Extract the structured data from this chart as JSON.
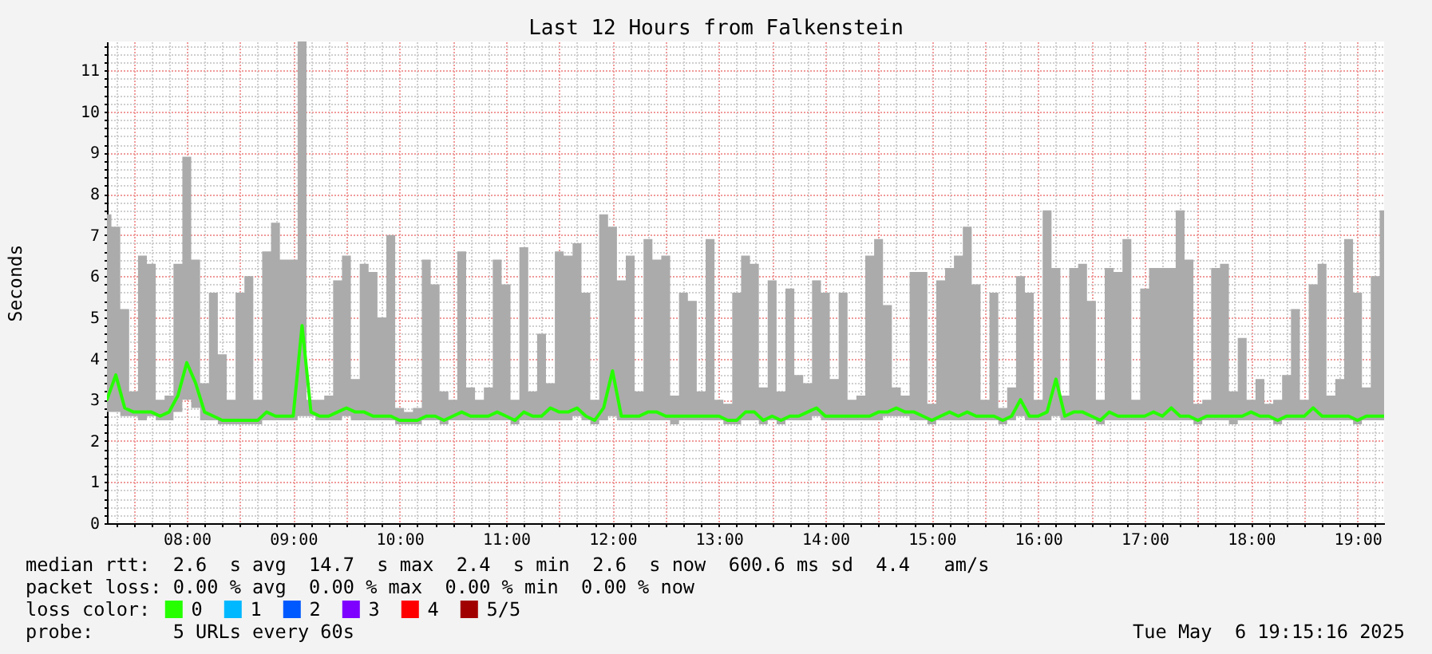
{
  "chart_data": {
    "type": "line",
    "title": "Last 12 Hours from Falkenstein",
    "ylabel": "Seconds",
    "legend_title": "loss color:",
    "legend": "bottom left",
    "grid": true,
    "xlim": [
      7.25,
      19.25
    ],
    "ylim": [
      0,
      11.7
    ],
    "xticks": [
      {
        "value": 7.3333,
        "label": null
      },
      {
        "value": 7.5,
        "label": null
      },
      {
        "value": 7.6667,
        "label": null
      },
      {
        "value": 7.8333,
        "label": null
      },
      {
        "value": 8,
        "label": "08:00"
      },
      {
        "value": 8.1667,
        "label": null
      },
      {
        "value": 8.3333,
        "label": null
      },
      {
        "value": 8.5,
        "label": null
      },
      {
        "value": 8.6667,
        "label": null
      },
      {
        "value": 8.8333,
        "label": null
      },
      {
        "value": 9,
        "label": "09:00"
      },
      {
        "value": 9.1667,
        "label": null
      },
      {
        "value": 9.3333,
        "label": null
      },
      {
        "value": 9.5,
        "label": null
      },
      {
        "value": 9.6667,
        "label": null
      },
      {
        "value": 9.8333,
        "label": null
      },
      {
        "value": 10,
        "label": "10:00"
      },
      {
        "value": 10.1667,
        "label": null
      },
      {
        "value": 10.3333,
        "label": null
      },
      {
        "value": 10.5,
        "label": null
      },
      {
        "value": 10.6667,
        "label": null
      },
      {
        "value": 10.8333,
        "label": null
      },
      {
        "value": 11,
        "label": "11:00"
      },
      {
        "value": 11.1667,
        "label": null
      },
      {
        "value": 11.3333,
        "label": null
      },
      {
        "value": 11.5,
        "label": null
      },
      {
        "value": 11.6667,
        "label": null
      },
      {
        "value": 11.8333,
        "label": null
      },
      {
        "value": 12,
        "label": "12:00"
      },
      {
        "value": 12.1667,
        "label": null
      },
      {
        "value": 12.3333,
        "label": null
      },
      {
        "value": 12.5,
        "label": null
      },
      {
        "value": 12.6667,
        "label": null
      },
      {
        "value": 12.8333,
        "label": null
      },
      {
        "value": 13,
        "label": "13:00"
      },
      {
        "value": 13.1667,
        "label": null
      },
      {
        "value": 13.3333,
        "label": null
      },
      {
        "value": 13.5,
        "label": null
      },
      {
        "value": 13.6667,
        "label": null
      },
      {
        "value": 13.8333,
        "label": null
      },
      {
        "value": 14,
        "label": "14:00"
      },
      {
        "value": 14.1667,
        "label": null
      },
      {
        "value": 14.3333,
        "label": null
      },
      {
        "value": 14.5,
        "label": null
      },
      {
        "value": 14.6667,
        "label": null
      },
      {
        "value": 14.8333,
        "label": null
      },
      {
        "value": 15,
        "label": "15:00"
      },
      {
        "value": 15.1667,
        "label": null
      },
      {
        "value": 15.3333,
        "label": null
      },
      {
        "value": 15.5,
        "label": null
      },
      {
        "value": 15.6667,
        "label": null
      },
      {
        "value": 15.8333,
        "label": null
      },
      {
        "value": 16,
        "label": "16:00"
      },
      {
        "value": 16.1667,
        "label": null
      },
      {
        "value": 16.3333,
        "label": null
      },
      {
        "value": 16.5,
        "label": null
      },
      {
        "value": 16.6667,
        "label": null
      },
      {
        "value": 16.8333,
        "label": null
      },
      {
        "value": 17,
        "label": "17:00"
      },
      {
        "value": 17.1667,
        "label": null
      },
      {
        "value": 17.3333,
        "label": null
      },
      {
        "value": 17.5,
        "label": null
      },
      {
        "value": 17.6667,
        "label": null
      },
      {
        "value": 17.8333,
        "label": null
      },
      {
        "value": 18,
        "label": "18:00"
      },
      {
        "value": 18.1667,
        "label": null
      },
      {
        "value": 18.3333,
        "label": null
      },
      {
        "value": 18.5,
        "label": null
      },
      {
        "value": 18.6667,
        "label": null
      },
      {
        "value": 18.8333,
        "label": null
      },
      {
        "value": 19,
        "label": "19:00"
      },
      {
        "value": 19.1667,
        "label": null
      }
    ],
    "yticks": [
      0,
      {
        "value": 0.2,
        "label": null
      },
      {
        "value": 0.4,
        "label": null
      },
      {
        "value": 0.6,
        "label": null
      },
      {
        "value": 0.8,
        "label": null
      },
      1,
      {
        "value": 1.2,
        "label": null
      },
      {
        "value": 1.4,
        "label": null
      },
      {
        "value": 1.6,
        "label": null
      },
      {
        "value": 1.8,
        "label": null
      },
      2,
      {
        "value": 2.2,
        "label": null
      },
      {
        "value": 2.4,
        "label": null
      },
      {
        "value": 2.6,
        "label": null
      },
      {
        "value": 2.8,
        "label": null
      },
      3,
      {
        "value": 3.2,
        "label": null
      },
      {
        "value": 3.4,
        "label": null
      },
      {
        "value": 3.6,
        "label": null
      },
      {
        "value": 3.8,
        "label": null
      },
      4,
      {
        "value": 4.2,
        "label": null
      },
      {
        "value": 4.4,
        "label": null
      },
      {
        "value": 4.6,
        "label": null
      },
      {
        "value": 4.8,
        "label": null
      },
      5,
      {
        "value": 5.2,
        "label": null
      },
      {
        "value": 5.4,
        "label": null
      },
      {
        "value": 5.6,
        "label": null
      },
      {
        "value": 5.8,
        "label": null
      },
      6,
      {
        "value": 6.2,
        "label": null
      },
      {
        "value": 6.4,
        "label": null
      },
      {
        "value": 6.6,
        "label": null
      },
      {
        "value": 6.8,
        "label": null
      },
      7,
      {
        "value": 7.2,
        "label": null
      },
      {
        "value": 7.4,
        "label": null
      },
      {
        "value": 7.6,
        "label": null
      },
      {
        "value": 7.8,
        "label": null
      },
      8,
      {
        "value": 8.2,
        "label": null
      },
      {
        "value": 8.4,
        "label": null
      },
      {
        "value": 8.6,
        "label": null
      },
      {
        "value": 8.8,
        "label": null
      },
      9,
      {
        "value": 9.2,
        "label": null
      },
      {
        "value": 9.4,
        "label": null
      },
      {
        "value": 9.6,
        "label": null
      },
      {
        "value": 9.8,
        "label": null
      },
      10,
      {
        "value": 10.2,
        "label": null
      },
      {
        "value": 10.4,
        "label": null
      },
      {
        "value": 10.6,
        "label": null
      },
      {
        "value": 10.8,
        "label": null
      },
      11,
      {
        "value": 11.2,
        "label": null
      },
      {
        "value": 11.4,
        "label": null
      },
      {
        "value": 11.6,
        "label": null
      }
    ],
    "x": [
      7.25,
      7.3333,
      7.4167,
      7.5,
      7.5833,
      7.6667,
      7.75,
      7.8333,
      7.9167,
      8,
      8.0833,
      8.1667,
      8.25,
      8.3333,
      8.4167,
      8.5,
      8.5833,
      8.6667,
      8.75,
      8.8333,
      8.9167,
      9,
      9.0833,
      9.1667,
      9.25,
      9.3333,
      9.4167,
      9.5,
      9.5833,
      9.6667,
      9.75,
      9.8333,
      9.9167,
      10,
      10.0833,
      10.1667,
      10.25,
      10.3333,
      10.4167,
      10.5,
      10.5833,
      10.6667,
      10.75,
      10.8333,
      10.9167,
      11,
      11.0833,
      11.1667,
      11.25,
      11.3333,
      11.4167,
      11.5,
      11.5833,
      11.6667,
      11.75,
      11.8333,
      11.9167,
      12,
      12.0833,
      12.1667,
      12.25,
      12.3333,
      12.4167,
      12.5,
      12.5833,
      12.6667,
      12.75,
      12.8333,
      12.9167,
      13,
      13.0833,
      13.1667,
      13.25,
      13.3333,
      13.4167,
      13.5,
      13.5833,
      13.6667,
      13.75,
      13.8333,
      13.9167,
      14,
      14.0833,
      14.1667,
      14.25,
      14.3333,
      14.4167,
      14.5,
      14.5833,
      14.6667,
      14.75,
      14.8333,
      14.9167,
      15,
      15.0833,
      15.1667,
      15.25,
      15.3333,
      15.4167,
      15.5,
      15.5833,
      15.6667,
      15.75,
      15.8333,
      15.9167,
      16,
      16.0833,
      16.1667,
      16.25,
      16.3333,
      16.4167,
      16.5,
      16.5833,
      16.6667,
      16.75,
      16.8333,
      16.9167,
      17,
      17.0833,
      17.1667,
      17.25,
      17.3333,
      17.4167,
      17.5,
      17.5833,
      17.6667,
      17.75,
      17.8333,
      17.9167,
      18,
      18.0833,
      18.1667,
      18.25,
      18.3333,
      18.4167,
      18.5,
      18.5833,
      18.6667,
      18.75,
      18.8333,
      18.9167,
      19,
      19.0833,
      19.1667,
      19.25
    ],
    "series": [
      {
        "name": "0",
        "color": "#26ff00",
        "values": [
          3.0,
          3.6,
          2.8,
          2.7,
          2.7,
          2.7,
          2.6,
          2.7,
          3.1,
          3.9,
          3.4,
          2.7,
          2.6,
          2.5,
          2.5,
          2.5,
          2.5,
          2.5,
          2.7,
          2.6,
          2.6,
          2.6,
          4.8,
          2.7,
          2.6,
          2.6,
          2.7,
          2.8,
          2.7,
          2.7,
          2.6,
          2.6,
          2.6,
          2.5,
          2.5,
          2.5,
          2.6,
          2.6,
          2.5,
          2.6,
          2.7,
          2.6,
          2.6,
          2.6,
          2.7,
          2.6,
          2.5,
          2.7,
          2.6,
          2.6,
          2.8,
          2.7,
          2.7,
          2.8,
          2.6,
          2.5,
          2.8,
          3.7,
          2.6,
          2.6,
          2.6,
          2.7,
          2.7,
          2.6,
          2.6,
          2.6,
          2.6,
          2.6,
          2.6,
          2.6,
          2.5,
          2.5,
          2.7,
          2.7,
          2.5,
          2.6,
          2.5,
          2.6,
          2.6,
          2.7,
          2.8,
          2.6,
          2.6,
          2.6,
          2.6,
          2.6,
          2.6,
          2.7,
          2.7,
          2.8,
          2.7,
          2.7,
          2.6,
          2.5,
          2.6,
          2.7,
          2.6,
          2.7,
          2.6,
          2.6,
          2.6,
          2.5,
          2.6,
          3.0,
          2.6,
          2.6,
          2.7,
          3.5,
          2.6,
          2.7,
          2.7,
          2.6,
          2.5,
          2.7,
          2.6,
          2.6,
          2.6,
          2.6,
          2.7,
          2.6,
          2.8,
          2.6,
          2.6,
          2.5,
          2.6,
          2.6,
          2.6,
          2.6,
          2.6,
          2.7,
          2.6,
          2.6,
          2.5,
          2.6,
          2.6,
          2.6,
          2.8,
          2.6,
          2.6,
          2.6,
          2.6,
          2.5,
          2.6,
          2.6,
          2.6
        ],
        "lower": [
          2.7,
          2.7,
          2.6,
          2.6,
          2.5,
          2.6,
          2.5,
          2.5,
          2.7,
          3.0,
          2.8,
          2.5,
          2.5,
          2.4,
          2.4,
          2.4,
          2.4,
          2.4,
          2.5,
          2.5,
          2.5,
          2.5,
          2.6,
          2.6,
          2.5,
          2.5,
          2.5,
          2.6,
          2.5,
          2.5,
          2.5,
          2.5,
          2.5,
          2.4,
          2.4,
          2.4,
          2.5,
          2.5,
          2.4,
          2.5,
          2.5,
          2.5,
          2.5,
          2.5,
          2.5,
          2.5,
          2.4,
          2.5,
          2.5,
          2.5,
          2.5,
          2.5,
          2.5,
          2.6,
          2.5,
          2.4,
          2.5,
          2.6,
          2.5,
          2.5,
          2.5,
          2.5,
          2.5,
          2.5,
          2.4,
          2.5,
          2.5,
          2.5,
          2.5,
          2.5,
          2.4,
          2.4,
          2.5,
          2.5,
          2.4,
          2.5,
          2.4,
          2.5,
          2.5,
          2.5,
          2.6,
          2.5,
          2.5,
          2.5,
          2.5,
          2.5,
          2.5,
          2.5,
          2.6,
          2.6,
          2.6,
          2.5,
          2.5,
          2.4,
          2.5,
          2.5,
          2.5,
          2.5,
          2.5,
          2.5,
          2.5,
          2.4,
          2.5,
          2.6,
          2.5,
          2.5,
          2.5,
          2.6,
          2.5,
          2.5,
          2.5,
          2.5,
          2.4,
          2.5,
          2.5,
          2.5,
          2.5,
          2.5,
          2.5,
          2.5,
          2.5,
          2.5,
          2.5,
          2.4,
          2.5,
          2.5,
          2.5,
          2.4,
          2.5,
          2.5,
          2.5,
          2.5,
          2.4,
          2.5,
          2.5,
          2.5,
          2.5,
          2.5,
          2.5,
          2.5,
          2.5,
          2.4,
          2.5,
          2.5,
          2.5
        ],
        "upper": [
          7.5,
          7.2,
          5.2,
          3.2,
          6.5,
          6.3,
          3.0,
          3.1,
          6.3,
          8.9,
          6.4,
          3.4,
          5.6,
          4.1,
          3.0,
          5.6,
          6.0,
          3.0,
          6.6,
          7.3,
          6.4,
          6.4,
          11.7,
          3.0,
          3.0,
          3.1,
          5.9,
          6.5,
          3.5,
          6.3,
          6.1,
          5.0,
          7.0,
          2.8,
          2.7,
          2.8,
          6.4,
          5.8,
          3.2,
          3.0,
          6.6,
          3.3,
          3.0,
          3.3,
          6.4,
          5.8,
          3.0,
          6.7,
          3.2,
          4.6,
          3.4,
          6.6,
          6.5,
          6.8,
          5.6,
          3.0,
          7.5,
          7.2,
          5.9,
          6.5,
          3.2,
          6.9,
          6.4,
          6.5,
          3.1,
          5.6,
          5.4,
          3.2,
          6.9,
          3.0,
          2.9,
          5.6,
          6.5,
          6.3,
          3.3,
          5.9,
          3.2,
          5.7,
          3.6,
          3.4,
          5.9,
          5.6,
          3.5,
          5.6,
          3.0,
          3.1,
          6.5,
          6.9,
          5.3,
          3.3,
          3.1,
          6.1,
          6.1,
          2.9,
          5.9,
          6.2,
          6.5,
          7.2,
          5.8,
          3.0,
          5.6,
          2.8,
          3.3,
          6.0,
          5.6,
          3.0,
          7.6,
          6.2,
          3.1,
          6.2,
          6.3,
          5.4,
          3.0,
          6.2,
          6.1,
          6.9,
          3.0,
          5.7,
          6.2,
          6.2,
          6.2,
          7.6,
          6.4,
          2.9,
          3.0,
          6.2,
          6.3,
          3.2,
          4.5,
          3.0,
          3.5,
          2.9,
          3.0,
          3.6,
          5.2,
          3.0,
          5.8,
          6.3,
          3.1,
          3.5,
          6.9,
          5.6,
          3.3,
          6.0,
          7.6
        ]
      },
      {
        "name": "1",
        "color": "#00b8ff",
        "values": [
          null,
          null,
          null,
          null,
          null,
          null,
          null,
          null,
          null,
          null,
          null,
          null,
          null,
          null,
          null,
          null,
          null,
          null,
          null,
          null,
          null,
          null,
          null,
          null,
          null,
          null,
          null,
          null,
          null,
          null,
          null,
          null,
          null,
          null,
          null,
          null,
          null,
          null,
          null,
          null,
          null,
          null,
          null,
          null,
          null,
          null,
          null,
          null,
          null,
          null,
          null,
          null,
          null,
          null,
          null,
          null,
          null,
          null,
          null,
          null,
          null,
          null,
          null,
          null,
          null,
          null,
          null,
          null,
          null,
          null,
          null,
          null,
          null,
          null,
          null,
          null,
          null,
          null,
          null,
          null,
          null,
          null,
          null,
          null,
          null,
          null,
          null,
          null,
          null,
          null,
          null,
          null,
          null,
          null,
          null,
          null,
          null,
          null,
          null,
          null,
          null,
          null,
          null,
          null,
          null,
          null,
          null,
          null,
          null,
          null,
          null,
          null,
          null,
          null,
          null,
          null,
          null,
          null,
          null,
          null,
          null,
          null,
          null,
          null,
          null,
          null,
          null,
          null,
          null,
          null,
          null,
          null,
          null,
          null,
          null,
          null,
          null,
          null,
          null,
          null,
          null,
          null,
          null,
          null,
          null
        ]
      },
      {
        "name": "2",
        "color": "#0059ff",
        "values": [
          null,
          null,
          null,
          null,
          null,
          null,
          null,
          null,
          null,
          null,
          null,
          null,
          null,
          null,
          null,
          null,
          null,
          null,
          null,
          null,
          null,
          null,
          null,
          null,
          null,
          null,
          null,
          null,
          null,
          null,
          null,
          null,
          null,
          null,
          null,
          null,
          null,
          null,
          null,
          null,
          null,
          null,
          null,
          null,
          null,
          null,
          null,
          null,
          null,
          null,
          null,
          null,
          null,
          null,
          null,
          null,
          null,
          null,
          null,
          null,
          null,
          null,
          null,
          null,
          null,
          null,
          null,
          null,
          null,
          null,
          null,
          null,
          null,
          null,
          null,
          null,
          null,
          null,
          null,
          null,
          null,
          null,
          null,
          null,
          null,
          null,
          null,
          null,
          null,
          null,
          null,
          null,
          null,
          null,
          null,
          null,
          null,
          null,
          null,
          null,
          null,
          null,
          null,
          null,
          null,
          null,
          null,
          null,
          null,
          null,
          null,
          null,
          null,
          null,
          null,
          null,
          null,
          null,
          null,
          null,
          null,
          null,
          null,
          null,
          null,
          null,
          null,
          null,
          null,
          null,
          null,
          null,
          null,
          null,
          null,
          null,
          null,
          null,
          null,
          null,
          null,
          null,
          null,
          null,
          null
        ]
      },
      {
        "name": "3",
        "color": "#7e00ff",
        "values": [
          null,
          null,
          null,
          null,
          null,
          null,
          null,
          null,
          null,
          null,
          null,
          null,
          null,
          null,
          null,
          null,
          null,
          null,
          null,
          null,
          null,
          null,
          null,
          null,
          null,
          null,
          null,
          null,
          null,
          null,
          null,
          null,
          null,
          null,
          null,
          null,
          null,
          null,
          null,
          null,
          null,
          null,
          null,
          null,
          null,
          null,
          null,
          null,
          null,
          null,
          null,
          null,
          null,
          null,
          null,
          null,
          null,
          null,
          null,
          null,
          null,
          null,
          null,
          null,
          null,
          null,
          null,
          null,
          null,
          null,
          null,
          null,
          null,
          null,
          null,
          null,
          null,
          null,
          null,
          null,
          null,
          null,
          null,
          null,
          null,
          null,
          null,
          null,
          null,
          null,
          null,
          null,
          null,
          null,
          null,
          null,
          null,
          null,
          null,
          null,
          null,
          null,
          null,
          null,
          null,
          null,
          null,
          null,
          null,
          null,
          null,
          null,
          null,
          null,
          null,
          null,
          null,
          null,
          null,
          null,
          null,
          null,
          null,
          null,
          null,
          null,
          null,
          null,
          null,
          null,
          null,
          null,
          null,
          null,
          null,
          null,
          null,
          null,
          null,
          null,
          null,
          null,
          null,
          null,
          null
        ]
      },
      {
        "name": "4",
        "color": "#ff0000",
        "values": [
          null,
          null,
          null,
          null,
          null,
          null,
          null,
          null,
          null,
          null,
          null,
          null,
          null,
          null,
          null,
          null,
          null,
          null,
          null,
          null,
          null,
          null,
          null,
          null,
          null,
          null,
          null,
          null,
          null,
          null,
          null,
          null,
          null,
          null,
          null,
          null,
          null,
          null,
          null,
          null,
          null,
          null,
          null,
          null,
          null,
          null,
          null,
          null,
          null,
          null,
          null,
          null,
          null,
          null,
          null,
          null,
          null,
          null,
          null,
          null,
          null,
          null,
          null,
          null,
          null,
          null,
          null,
          null,
          null,
          null,
          null,
          null,
          null,
          null,
          null,
          null,
          null,
          null,
          null,
          null,
          null,
          null,
          null,
          null,
          null,
          null,
          null,
          null,
          null,
          null,
          null,
          null,
          null,
          null,
          null,
          null,
          null,
          null,
          null,
          null,
          null,
          null,
          null,
          null,
          null,
          null,
          null,
          null,
          null,
          null,
          null,
          null,
          null,
          null,
          null,
          null,
          null,
          null,
          null,
          null,
          null,
          null,
          null,
          null,
          null,
          null,
          null,
          null,
          null,
          null,
          null,
          null,
          null,
          null,
          null,
          null,
          null,
          null,
          null,
          null,
          null,
          null,
          null,
          null,
          null
        ]
      },
      {
        "name": "5/5",
        "color": "#a10000",
        "values": [
          null,
          null,
          null,
          null,
          null,
          null,
          null,
          null,
          null,
          null,
          null,
          null,
          null,
          null,
          null,
          null,
          null,
          null,
          null,
          null,
          null,
          null,
          null,
          null,
          null,
          null,
          null,
          null,
          null,
          null,
          null,
          null,
          null,
          null,
          null,
          null,
          null,
          null,
          null,
          null,
          null,
          null,
          null,
          null,
          null,
          null,
          null,
          null,
          null,
          null,
          null,
          null,
          null,
          null,
          null,
          null,
          null,
          null,
          null,
          null,
          null,
          null,
          null,
          null,
          null,
          null,
          null,
          null,
          null,
          null,
          null,
          null,
          null,
          null,
          null,
          null,
          null,
          null,
          null,
          null,
          null,
          null,
          null,
          null,
          null,
          null,
          null,
          null,
          null,
          null,
          null,
          null,
          null,
          null,
          null,
          null,
          null,
          null,
          null,
          null,
          null,
          null,
          null,
          null,
          null,
          null,
          null,
          null,
          null,
          null,
          null,
          null,
          null,
          null,
          null,
          null,
          null,
          null,
          null,
          null,
          null,
          null,
          null,
          null,
          null,
          null,
          null,
          null,
          null,
          null,
          null,
          null,
          null,
          null,
          null,
          null,
          null,
          null,
          null,
          null,
          null,
          null,
          null,
          null,
          null
        ]
      }
    ],
    "annotations": [
      "median rtt:  2.6  s avg  14.7  s max  2.4  s min  2.6  s now  600.6 ms sd  4.4   am/s",
      "packet loss: 0.00 % avg  0.00 % max  0.00 % min  0.00 % now",
      "probe:       5 URLs every 60s",
      "Tue May  6 19:15:16 2025"
    ]
  }
}
